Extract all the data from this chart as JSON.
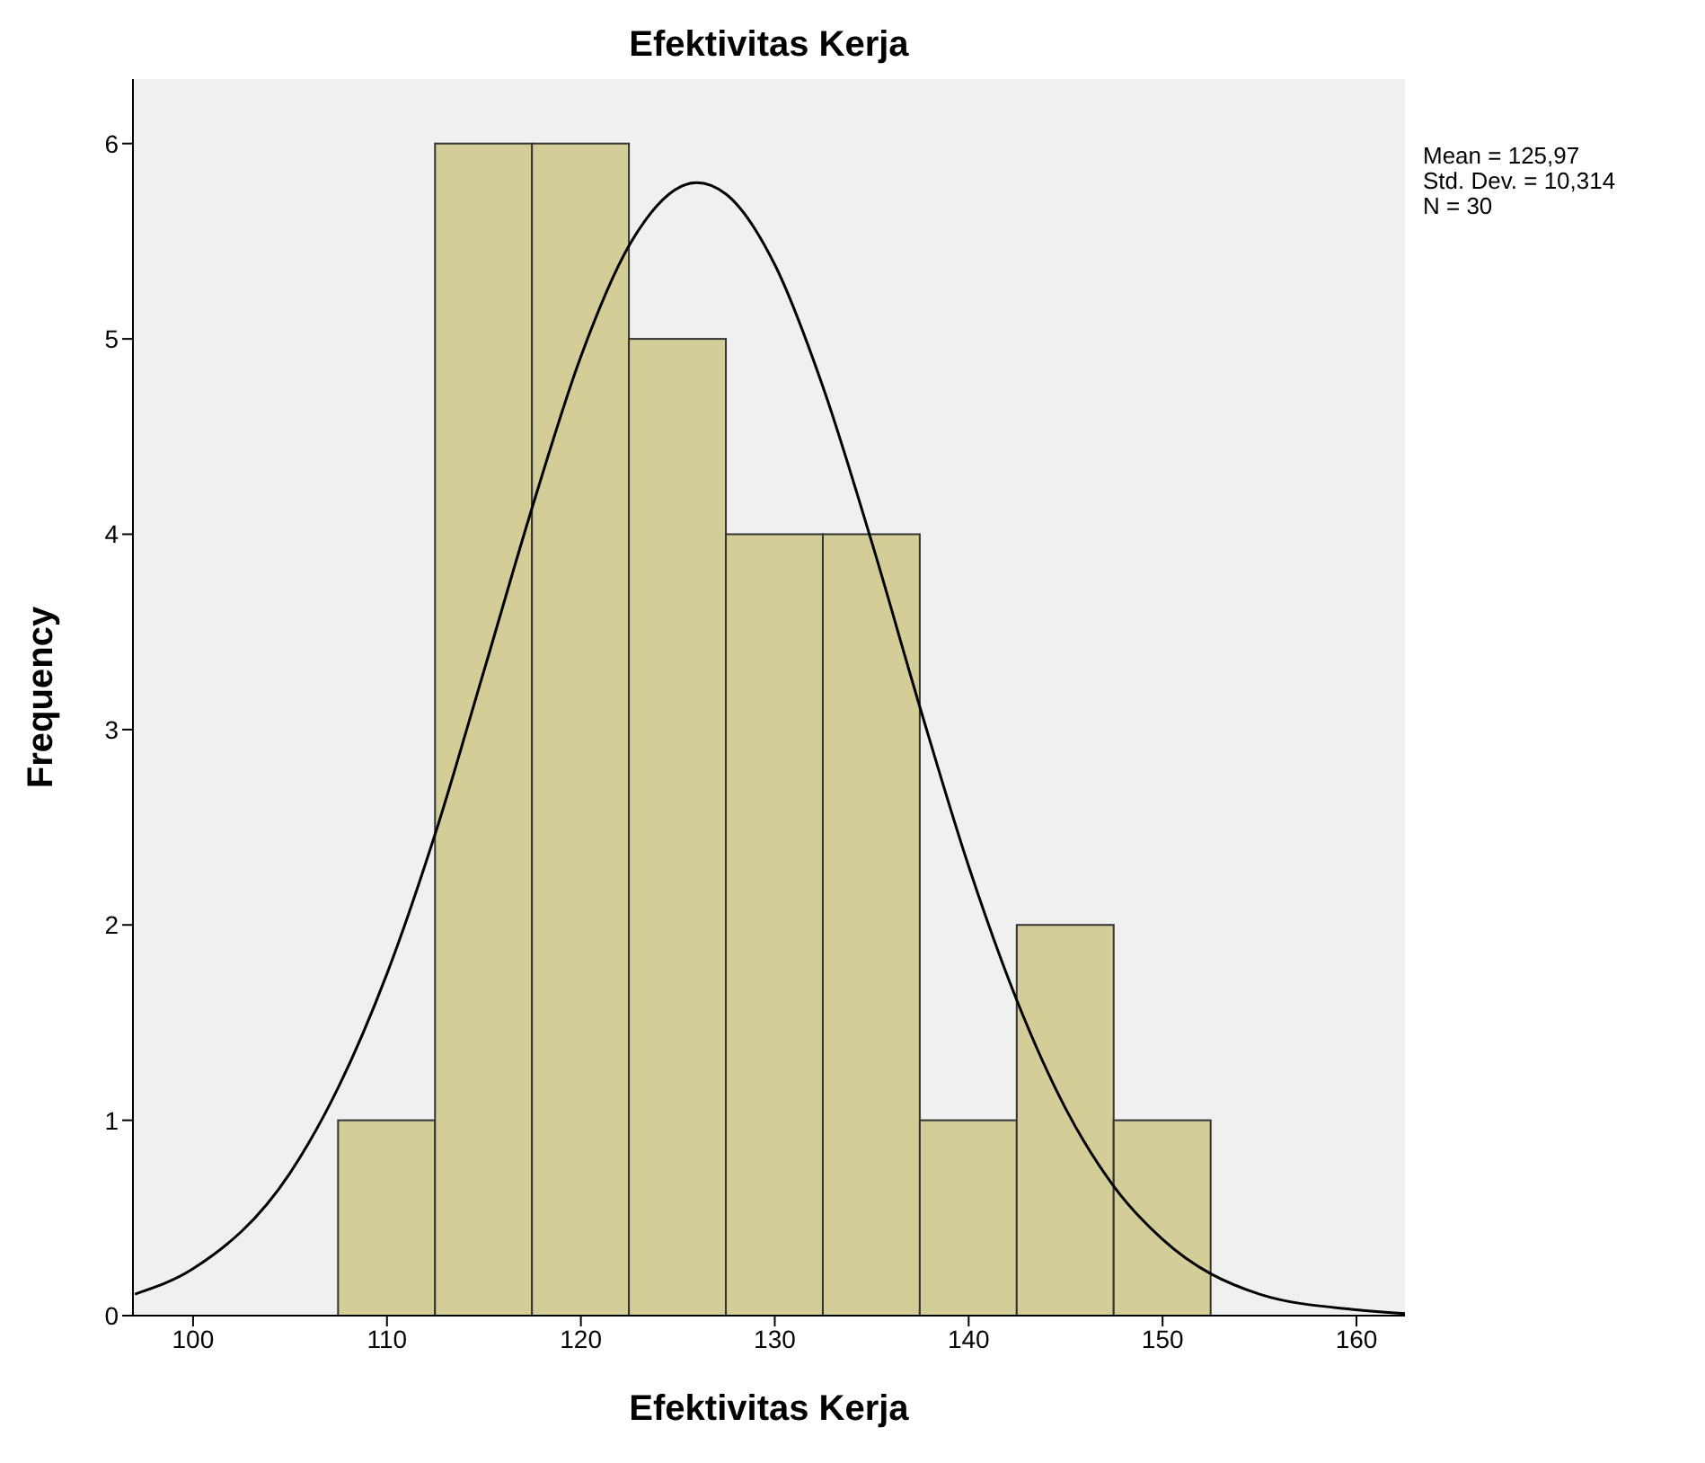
{
  "chart_data": {
    "type": "histogram",
    "title": "Efektivitas Kerja",
    "xlabel": "Efektivitas Kerja",
    "ylabel": "Frequency",
    "annotations": [
      "Mean = 125,97",
      "Std. Dev. = 10,314",
      "N = 30"
    ],
    "bins": [
      107.5,
      112.5,
      117.5,
      122.5,
      127.5,
      132.5,
      137.5,
      142.5,
      147.5,
      152.5
    ],
    "series": [
      {
        "type": "histogram",
        "color": "#d3ce97",
        "values": [
          1,
          6,
          6,
          5,
          4,
          4,
          1,
          2,
          1
        ]
      },
      {
        "type": "line",
        "color": "#000000",
        "x": [
          97,
          100,
          105,
          107.5,
          110,
          112.5,
          115,
          117.5,
          120,
          122.5,
          125.97,
          127.5,
          130,
          132.5,
          135,
          137.5,
          140,
          142.5,
          145,
          147.5,
          150,
          155,
          160,
          162.5
        ],
        "values": [
          0.11,
          0.24,
          0.73,
          1.17,
          1.75,
          2.47,
          3.3,
          4.14,
          4.91,
          5.48,
          5.8,
          5.74,
          5.38,
          4.75,
          3.96,
          3.11,
          2.3,
          1.61,
          1.06,
          0.66,
          0.39,
          0.11,
          0.03,
          0.01
        ]
      }
    ],
    "xlim": [
      96.9,
      162.5
    ],
    "xticks": [
      100,
      110,
      120,
      130,
      140,
      150,
      160
    ],
    "ylim": [
      0,
      6.33
    ],
    "yticks": [
      0,
      1,
      2,
      3,
      4,
      5,
      6
    ],
    "marker": "none",
    "line_style": "solid"
  }
}
